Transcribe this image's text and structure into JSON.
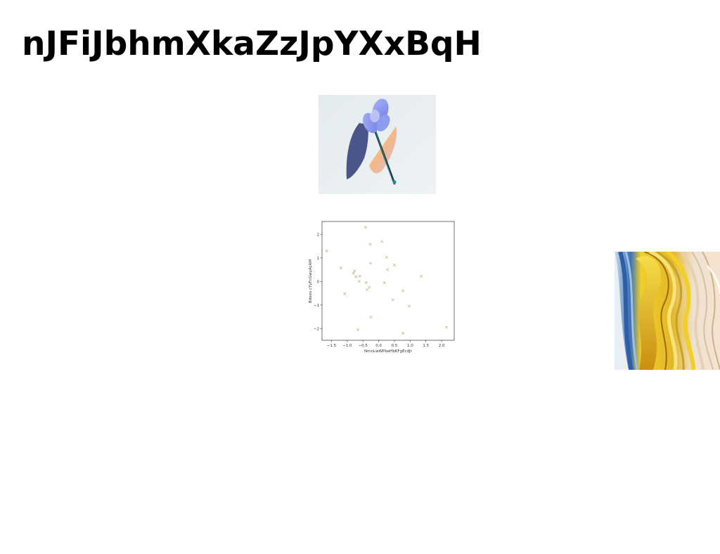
{
  "page": {
    "title": "nJFiJbhmXkaZzJpYXxBqH"
  },
  "images": {
    "flower": {
      "icon": "blue-flower-photo-icon",
      "background": "#e8edef",
      "petal_color": "#8e9cf0",
      "shadow_color": "#3d4a8a",
      "rainbow_colors": [
        "#f6d86a",
        "#f3b27a",
        "#d8b7e6"
      ]
    },
    "swirl": {
      "icon": "abstract-swirl-photo-icon",
      "colors": [
        "#f1cf27",
        "#d39c12",
        "#3b6fb6",
        "#e9d8c4",
        "#ffffff"
      ]
    }
  },
  "chart_data": {
    "type": "scatter",
    "title": "",
    "xlabel": "NmnLwWPbaHbKFgEcdJr",
    "ylabel": "Bdoov cYyFcGwyAcAM",
    "xlim": [
      -1.8,
      2.4
    ],
    "ylim": [
      -2.5,
      2.55
    ],
    "xticks": [
      -1.5,
      -1.0,
      -0.5,
      0.0,
      0.5,
      1.0,
      1.5,
      2.0
    ],
    "xtick_labels": [
      "−1.5",
      "−1.0",
      "−0.5",
      "0.0",
      "0.5",
      "1.0",
      "1.5",
      "2.0"
    ],
    "yticks": [
      -2,
      -1,
      0,
      1,
      2
    ],
    "ytick_labels": [
      "−2",
      "−1",
      "0",
      "1",
      "2"
    ],
    "marker": "x",
    "marker_color": "#c9b98a",
    "grid": false,
    "series": [
      {
        "x": [
          -1.65,
          -1.2,
          -1.08,
          -0.8,
          -0.77,
          -0.72,
          -0.66,
          -0.62,
          -0.6,
          -0.42,
          -0.4,
          -0.37,
          -0.3,
          -0.27,
          -0.26,
          -0.25,
          0.1,
          0.18,
          0.25,
          0.28,
          0.45,
          0.5,
          0.77,
          0.77,
          0.97,
          1.35,
          2.15
        ],
        "y": [
          1.3,
          0.58,
          -0.52,
          0.35,
          0.45,
          0.2,
          -2.05,
          0.0,
          0.22,
          2.3,
          -0.05,
          -0.35,
          -0.25,
          1.58,
          0.77,
          -1.52,
          1.7,
          -0.05,
          1.03,
          0.5,
          -0.78,
          0.7,
          -0.4,
          -2.2,
          -1.05,
          0.22,
          -1.95
        ]
      }
    ]
  }
}
